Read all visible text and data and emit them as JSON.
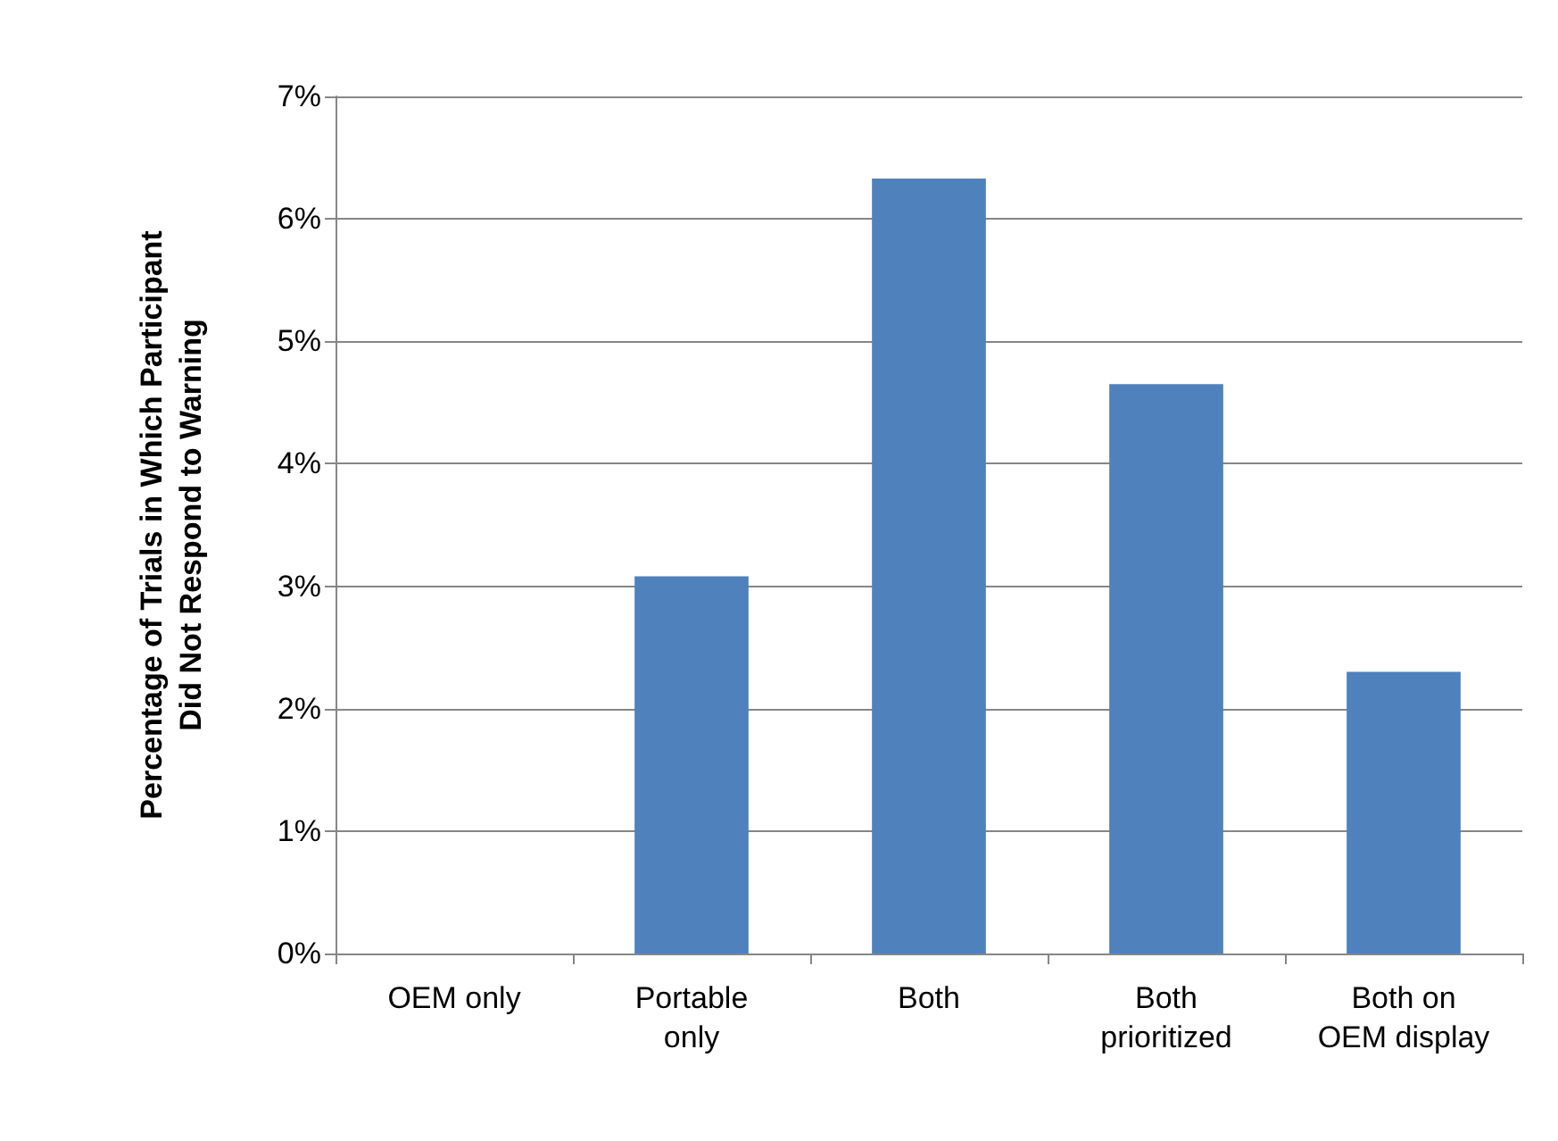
{
  "chart_data": {
    "type": "bar",
    "ylabel": "Percentage of Trials in Which Participant\nDid Not Respond to Warning",
    "categories": [
      "OEM only",
      "Portable\nonly",
      "Both",
      "Both\nprioritized",
      "Both on\nOEM display"
    ],
    "values": [
      0,
      3.08,
      6.33,
      4.65,
      2.3
    ],
    "color": "#4f81bd",
    "ylim": [
      0,
      7
    ],
    "yticks": [
      {
        "value": 0,
        "label": "0%"
      },
      {
        "value": 1,
        "label": "1%"
      },
      {
        "value": 2,
        "label": "2%"
      },
      {
        "value": 3,
        "label": "3%"
      },
      {
        "value": 4,
        "label": "4%"
      },
      {
        "value": 5,
        "label": "5%"
      },
      {
        "value": 6,
        "label": "6%"
      },
      {
        "value": 7,
        "label": "7%"
      }
    ],
    "grid": "y"
  }
}
